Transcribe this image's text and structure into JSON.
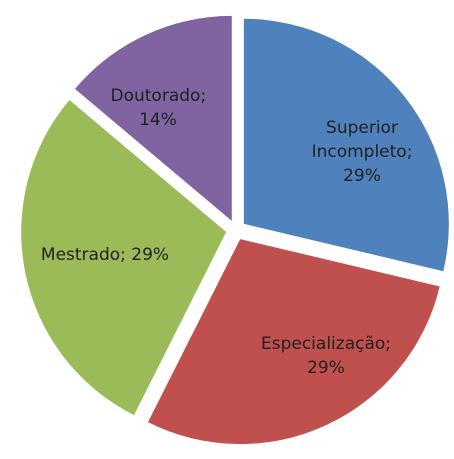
{
  "chart_data": {
    "type": "pie",
    "categories": [
      "Superior Incompleto",
      "Especialização",
      "Mestrado",
      "Doutorado"
    ],
    "values": [
      29,
      29,
      29,
      14
    ],
    "value_labels": [
      "29%",
      "29%",
      "29%",
      "14%"
    ],
    "separator": ";",
    "colors": [
      "#4f81bd",
      "#c0504d",
      "#9bbb59",
      "#8064a2"
    ]
  }
}
